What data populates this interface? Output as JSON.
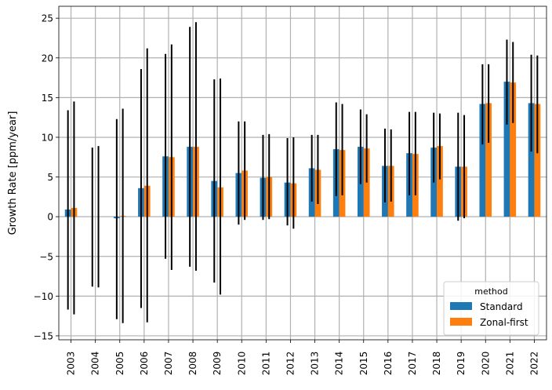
{
  "chart_data": {
    "type": "bar",
    "title": "",
    "xlabel": "",
    "ylabel": "Growth Rate [ppm/year]",
    "ylim": [
      -15.5,
      26.5
    ],
    "yticks": [
      -15,
      -10,
      -5,
      0,
      5,
      10,
      15,
      20,
      25
    ],
    "ytick_labels": [
      "−15",
      "−10",
      "−5",
      "0",
      "5",
      "10",
      "15",
      "20",
      "25"
    ],
    "grid": true,
    "legend": {
      "title": "method",
      "placement": "lower-right"
    },
    "categories": [
      "2003",
      "2004",
      "2005",
      "2006",
      "2007",
      "2008",
      "2009",
      "2010",
      "2011",
      "2012",
      "2013",
      "2014",
      "2015",
      "2016",
      "2017",
      "2018",
      "2019",
      "2020",
      "2021",
      "2022"
    ],
    "series": [
      {
        "name": "Standard",
        "color": "#1f77b4",
        "values": [
          0.9,
          0.0,
          -0.2,
          3.6,
          7.6,
          8.8,
          4.5,
          5.5,
          4.9,
          4.3,
          6.1,
          8.5,
          8.8,
          6.4,
          8.0,
          8.7,
          6.3,
          14.2,
          17.0,
          14.3
        ],
        "err_low": [
          -11.7,
          -8.8,
          -12.9,
          -11.5,
          -5.3,
          -6.3,
          -8.3,
          -1.0,
          -0.4,
          -1.1,
          1.9,
          2.6,
          4.1,
          1.8,
          2.7,
          4.3,
          -0.5,
          9.1,
          11.6,
          8.2
        ],
        "err_high": [
          13.4,
          8.7,
          12.3,
          18.6,
          20.5,
          23.9,
          17.3,
          12.0,
          10.3,
          9.9,
          10.3,
          14.4,
          13.5,
          11.1,
          13.2,
          13.1,
          13.1,
          19.2,
          22.3,
          20.4
        ]
      },
      {
        "name": "Zonal-first",
        "color": "#ff7f0e",
        "values": [
          1.1,
          0.0,
          0.1,
          3.9,
          7.5,
          8.8,
          3.7,
          5.8,
          5.0,
          4.2,
          5.9,
          8.4,
          8.6,
          6.4,
          7.9,
          8.9,
          6.3,
          14.3,
          16.9,
          14.2
        ],
        "err_low": [
          -12.3,
          -8.9,
          -13.4,
          -13.3,
          -6.7,
          -6.8,
          -9.8,
          -0.4,
          -0.3,
          -1.5,
          1.6,
          2.7,
          4.3,
          1.9,
          2.7,
          4.7,
          -0.2,
          9.3,
          11.8,
          8.0
        ],
        "err_high": [
          14.5,
          8.9,
          13.6,
          21.2,
          21.7,
          24.5,
          17.4,
          12.0,
          10.4,
          10.0,
          10.3,
          14.2,
          12.9,
          11.0,
          13.2,
          13.0,
          12.8,
          19.2,
          22.0,
          20.3
        ]
      }
    ]
  }
}
